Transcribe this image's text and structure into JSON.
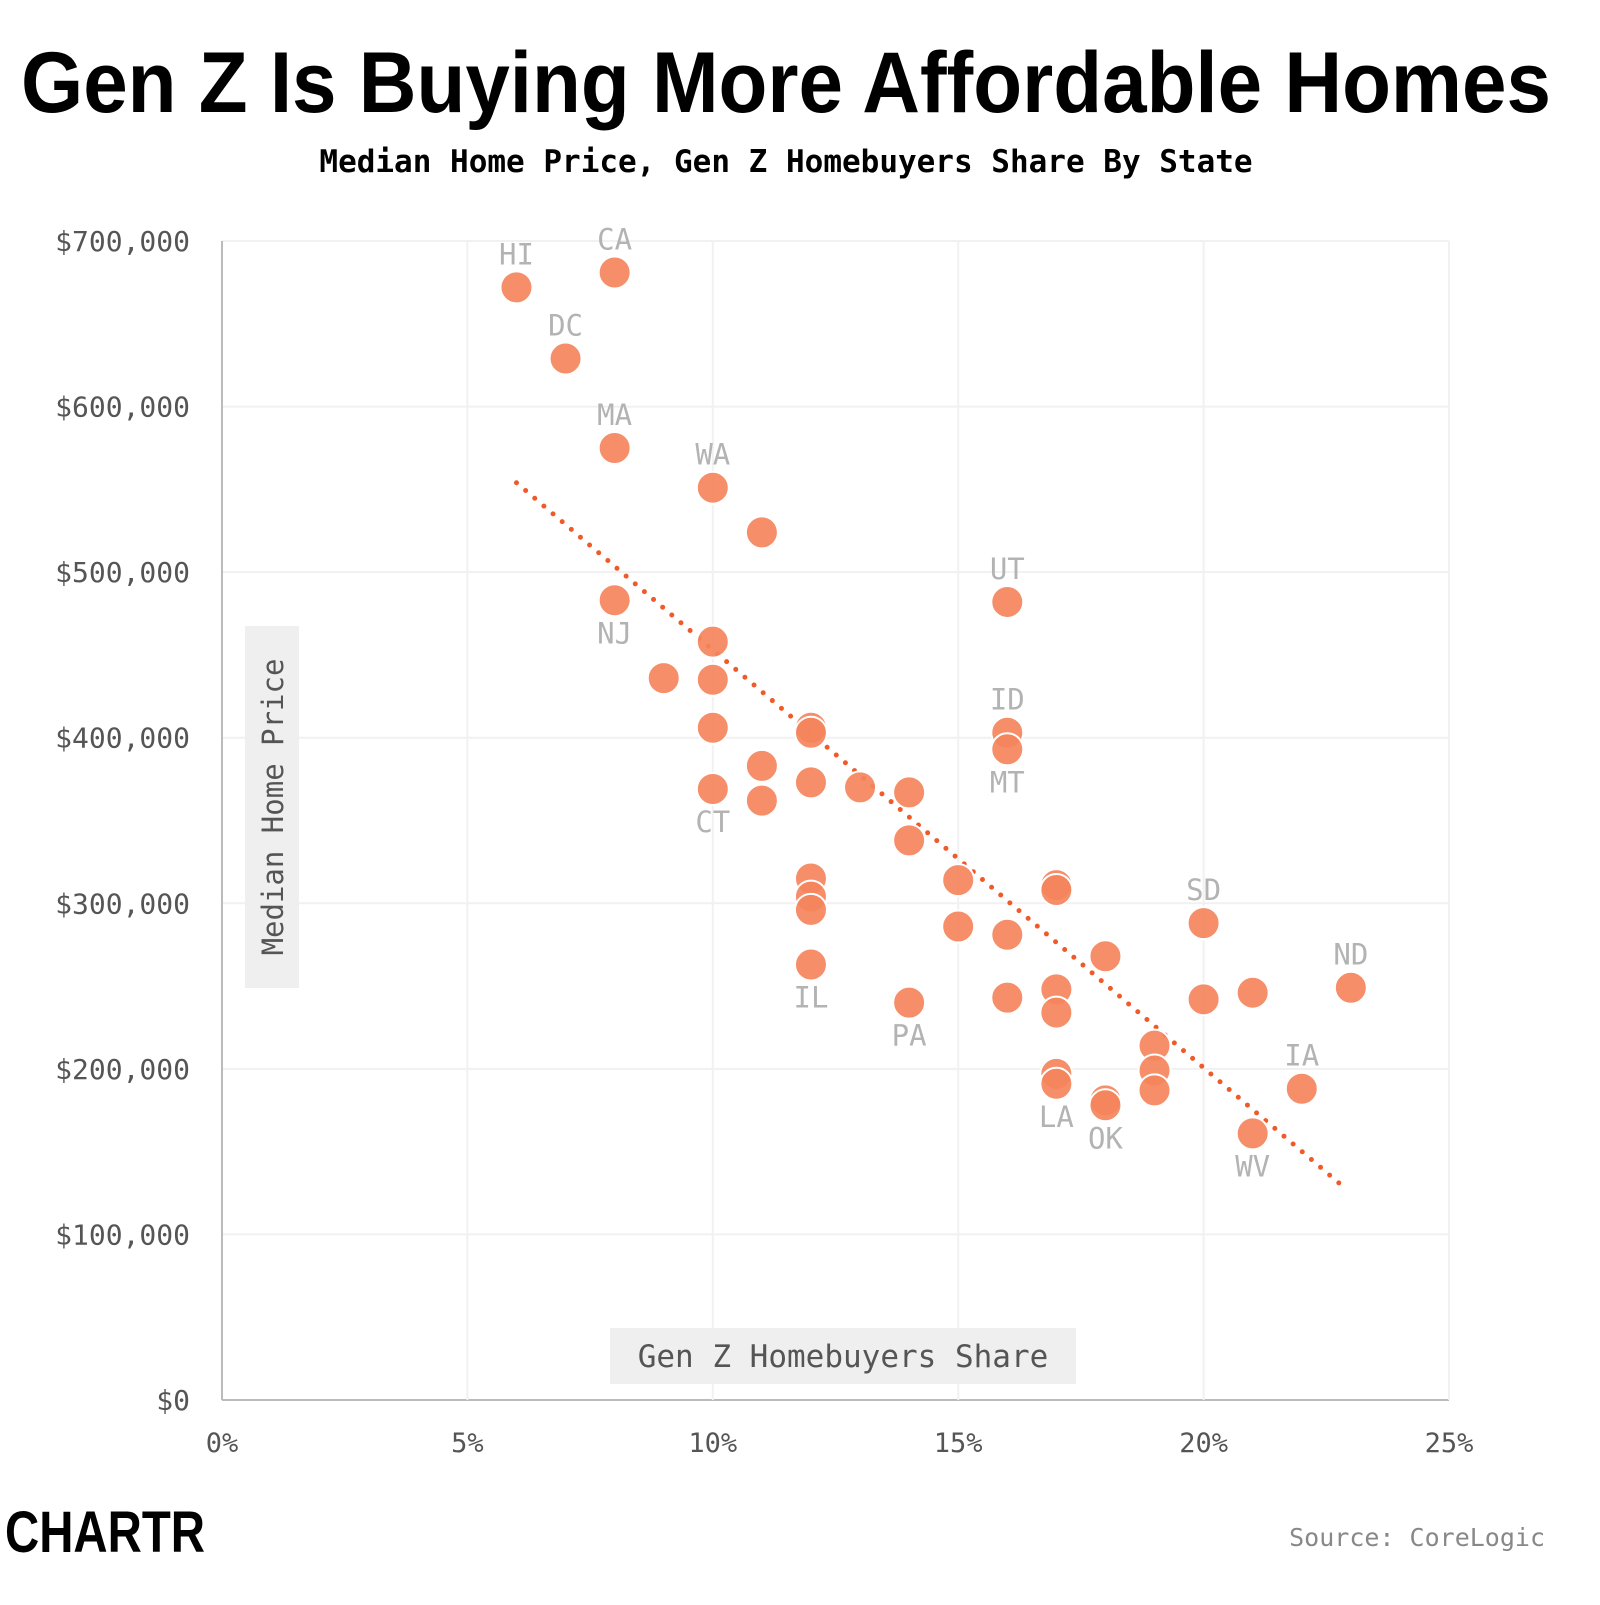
{
  "chart_data": {
    "type": "scatter",
    "title": "Gen Z Is Buying More Affordable Homes",
    "subtitle": "Median Home Price, Gen Z Homebuyers Share By State",
    "x_label": "Gen Z Homebuyers Share",
    "y_label": "Median Home Price",
    "source": "Source: CoreLogic",
    "brand": "CHARTR",
    "color": "#f4845c",
    "grid": true,
    "xlim": [
      0,
      25
    ],
    "ylim": [
      0,
      700000
    ],
    "xticks": [
      {
        "value": 0,
        "label": "0%"
      },
      {
        "value": 5,
        "label": "5%"
      },
      {
        "value": 10,
        "label": "10%"
      },
      {
        "value": 15,
        "label": "15%"
      },
      {
        "value": 20,
        "label": "20%"
      },
      {
        "value": 25,
        "label": "25%"
      }
    ],
    "yticks": [
      {
        "value": 0,
        "label": "$0"
      },
      {
        "value": 100000,
        "label": "$100,000"
      },
      {
        "value": 200000,
        "label": "$200,000"
      },
      {
        "value": 300000,
        "label": "$300,000"
      },
      {
        "value": 400000,
        "label": "$400,000"
      },
      {
        "value": 500000,
        "label": "$500,000"
      },
      {
        "value": 600000,
        "label": "$600,000"
      },
      {
        "value": 700000,
        "label": "$700,000"
      }
    ],
    "x": [
      6,
      8,
      7,
      8,
      10,
      11,
      8,
      16,
      10,
      9,
      10,
      10,
      12,
      12,
      16,
      16,
      11,
      12,
      13,
      14,
      10,
      11,
      14,
      12,
      12,
      12,
      15,
      17,
      17,
      15,
      20,
      16,
      18,
      12,
      23,
      17,
      21,
      16,
      20,
      14,
      17,
      19,
      19,
      17,
      17,
      19,
      22,
      18,
      18,
      21
    ],
    "values": [
      672000,
      681000,
      629000,
      575000,
      551000,
      524000,
      483000,
      482000,
      458000,
      436000,
      435000,
      406000,
      406000,
      403000,
      403000,
      393000,
      383000,
      373000,
      370000,
      367000,
      369000,
      362000,
      338000,
      315000,
      304000,
      296000,
      314000,
      311000,
      308000,
      286000,
      288000,
      281000,
      268000,
      263000,
      249000,
      248000,
      246000,
      243000,
      242000,
      240000,
      234000,
      214000,
      199000,
      197000,
      191000,
      187000,
      188000,
      181000,
      178000,
      161000
    ],
    "labels": [
      "HI",
      "CA",
      "DC",
      "MA",
      "WA",
      null,
      "NJ",
      "UT",
      null,
      null,
      null,
      null,
      null,
      null,
      "ID",
      "MT",
      null,
      null,
      null,
      null,
      "CT",
      null,
      null,
      null,
      null,
      null,
      null,
      null,
      null,
      null,
      "SD",
      null,
      null,
      "IL",
      "ND",
      null,
      null,
      null,
      null,
      "PA",
      null,
      null,
      null,
      null,
      "LA",
      null,
      "IA",
      null,
      "OK",
      "WV"
    ],
    "trendline": {
      "color": "#f05a28",
      "x": [
        6,
        22.8
      ],
      "values": [
        554000,
        130000
      ]
    }
  }
}
